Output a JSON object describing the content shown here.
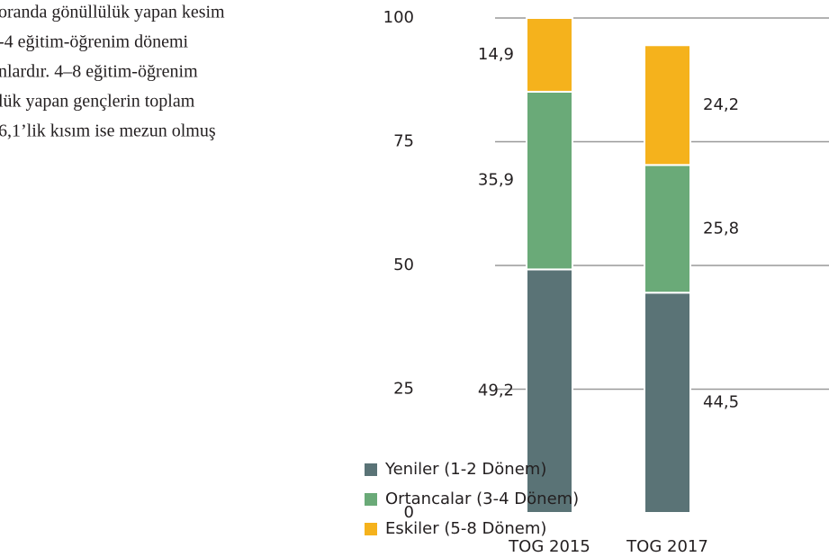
{
  "paragraph_lines": [
    "oranda gönüllülük yapan kesim",
    "-4 eğitim-öğrenim dönemi",
    "nlardır. 4–8 eğitim-öğrenim",
    "lük yapan gençlerin toplam",
    "6,1’lik kısım ise mezun olmuş"
  ],
  "chart_data": {
    "type": "stacked_bar",
    "categories": [
      "TOG 2015",
      "TOG 2017"
    ],
    "series": [
      {
        "name": "Yeniler (1-2 Dönem)",
        "color": "#5a7376",
        "values": [
          49.2,
          44.5
        ],
        "value_labels": [
          "49,2",
          "44,5"
        ]
      },
      {
        "name": "Ortancalar (3-4 Dönem)",
        "color": "#6aaa78",
        "values": [
          35.9,
          25.8
        ],
        "value_labels": [
          "35,9",
          "25,8"
        ]
      },
      {
        "name": "Eskiler (5-8 Dönem)",
        "color": "#f5b21c",
        "values": [
          14.9,
          24.2
        ],
        "value_labels": [
          "14,9",
          "24,2"
        ]
      }
    ],
    "ylim": [
      0,
      100
    ],
    "yticks": [
      0,
      25,
      50,
      75,
      100
    ],
    "grid": true
  }
}
